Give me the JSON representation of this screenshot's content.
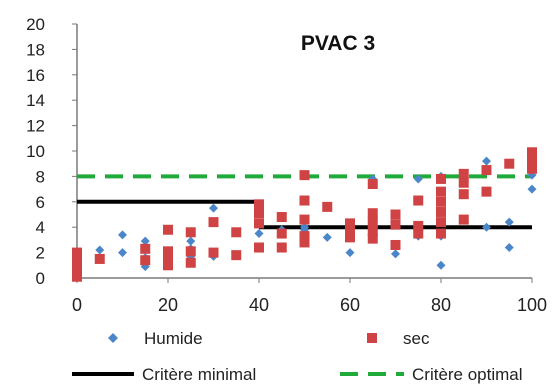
{
  "chart_data": {
    "type": "scatter",
    "title": "PVAC 3",
    "xlabel": "",
    "ylabel": "",
    "xlim": [
      0,
      100
    ],
    "ylim": [
      0,
      20
    ],
    "x_ticks": [
      "0",
      "20",
      "40",
      "60",
      "80",
      "100"
    ],
    "y_ticks": [
      "0",
      "2",
      "4",
      "6",
      "8",
      "10",
      "12",
      "14",
      "16",
      "18",
      "20"
    ],
    "grid": false,
    "legend_position": "bottom",
    "series": [
      {
        "name": "Humide",
        "marker": "diamond",
        "color": "#4a86c8",
        "points": [
          [
            0,
            0.3
          ],
          [
            0,
            0.6
          ],
          [
            0,
            1.2
          ],
          [
            5,
            2.2
          ],
          [
            10,
            2.0
          ],
          [
            10,
            3.4
          ],
          [
            15,
            0.9
          ],
          [
            15,
            1.6
          ],
          [
            15,
            2.9
          ],
          [
            20,
            2.0
          ],
          [
            20,
            3.8
          ],
          [
            25,
            1.7
          ],
          [
            25,
            2.3
          ],
          [
            25,
            2.9
          ],
          [
            30,
            1.7
          ],
          [
            30,
            5.5
          ],
          [
            40,
            3.5
          ],
          [
            45,
            3.8
          ],
          [
            50,
            3.8
          ],
          [
            50,
            4.0
          ],
          [
            55,
            3.2
          ],
          [
            60,
            2.0
          ],
          [
            60,
            3.5
          ],
          [
            65,
            7.8
          ],
          [
            70,
            1.9
          ],
          [
            75,
            3.3
          ],
          [
            75,
            7.8
          ],
          [
            80,
            1.0
          ],
          [
            80,
            3.3
          ],
          [
            80,
            8.0
          ],
          [
            85,
            8.1
          ],
          [
            90,
            4.0
          ],
          [
            90,
            9.2
          ],
          [
            95,
            2.4
          ],
          [
            95,
            4.4
          ],
          [
            95,
            9.0
          ],
          [
            100,
            7.0
          ],
          [
            100,
            8.1
          ]
        ]
      },
      {
        "name": "sec",
        "marker": "square",
        "color": "#cf4344",
        "points": [
          [
            0,
            0.1
          ],
          [
            0,
            0.5
          ],
          [
            0,
            1.0
          ],
          [
            0,
            1.5
          ],
          [
            0,
            2.0
          ],
          [
            5,
            1.5
          ],
          [
            15,
            1.4
          ],
          [
            15,
            2.3
          ],
          [
            20,
            1.0
          ],
          [
            20,
            1.6
          ],
          [
            20,
            2.1
          ],
          [
            20,
            3.8
          ],
          [
            25,
            1.2
          ],
          [
            25,
            2.1
          ],
          [
            25,
            3.6
          ],
          [
            30,
            2.0
          ],
          [
            30,
            4.4
          ],
          [
            35,
            1.8
          ],
          [
            35,
            3.6
          ],
          [
            40,
            2.4
          ],
          [
            40,
            4.3
          ],
          [
            40,
            5.1
          ],
          [
            40,
            5.8
          ],
          [
            45,
            2.4
          ],
          [
            45,
            3.5
          ],
          [
            45,
            4.8
          ],
          [
            50,
            2.8
          ],
          [
            50,
            3.3
          ],
          [
            50,
            4.6
          ],
          [
            50,
            6.1
          ],
          [
            50,
            8.1
          ],
          [
            55,
            5.6
          ],
          [
            60,
            3.2
          ],
          [
            60,
            3.7
          ],
          [
            60,
            4.3
          ],
          [
            65,
            3.1
          ],
          [
            65,
            3.7
          ],
          [
            65,
            4.4
          ],
          [
            65,
            5.1
          ],
          [
            65,
            7.4
          ],
          [
            70,
            2.6
          ],
          [
            70,
            4.2
          ],
          [
            70,
            5.0
          ],
          [
            75,
            3.5
          ],
          [
            75,
            4.1
          ],
          [
            75,
            6.1
          ],
          [
            80,
            3.5
          ],
          [
            80,
            4.4
          ],
          [
            80,
            5.2
          ],
          [
            80,
            6.0
          ],
          [
            80,
            6.8
          ],
          [
            80,
            7.8
          ],
          [
            85,
            4.6
          ],
          [
            85,
            6.6
          ],
          [
            85,
            7.5
          ],
          [
            85,
            8.2
          ],
          [
            90,
            6.8
          ],
          [
            90,
            8.5
          ],
          [
            95,
            9.0
          ],
          [
            100,
            8.6
          ],
          [
            100,
            9.3
          ],
          [
            100,
            9.9
          ]
        ]
      }
    ],
    "lines": [
      {
        "name": "Critère minimal",
        "style": "solid",
        "color": "#000000",
        "segments": [
          [
            [
              0,
              6
            ],
            [
              40,
              6
            ]
          ],
          [
            [
              40,
              4
            ],
            [
              100,
              4
            ]
          ]
        ]
      },
      {
        "name": "Critère optimal",
        "style": "dashed",
        "color": "#1faa3a",
        "segments": [
          [
            [
              0,
              8
            ],
            [
              100,
              8
            ]
          ]
        ]
      }
    ]
  }
}
